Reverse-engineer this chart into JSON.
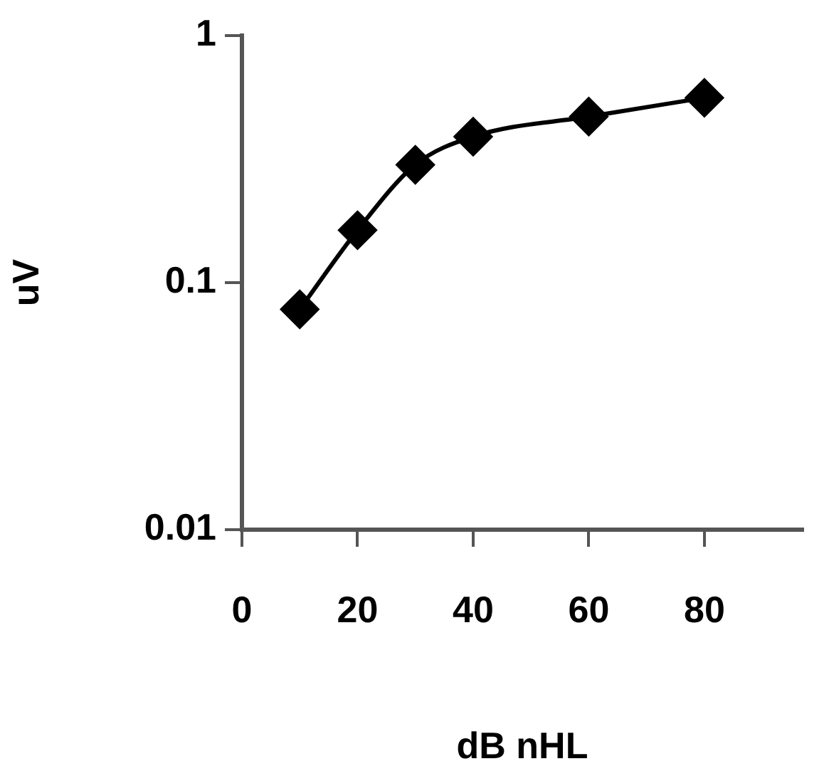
{
  "chart_data": {
    "type": "line",
    "xlabel": "dB nHL",
    "ylabel": "uV",
    "x": [
      10,
      20,
      30,
      40,
      60,
      80
    ],
    "series": [
      {
        "color": "#000000",
        "values": [
          0.078,
          0.163,
          0.3,
          0.39,
          0.47,
          0.56
        ]
      }
    ],
    "xlim": [
      0,
      97
    ],
    "xticks": [
      0,
      20,
      40,
      60,
      80
    ],
    "ylim": [
      0.01,
      1
    ],
    "yticks": [
      0.01,
      0.1,
      1
    ],
    "log": "y",
    "grid": false,
    "legend": false,
    "marker": "diamond",
    "line_style": "solid"
  }
}
